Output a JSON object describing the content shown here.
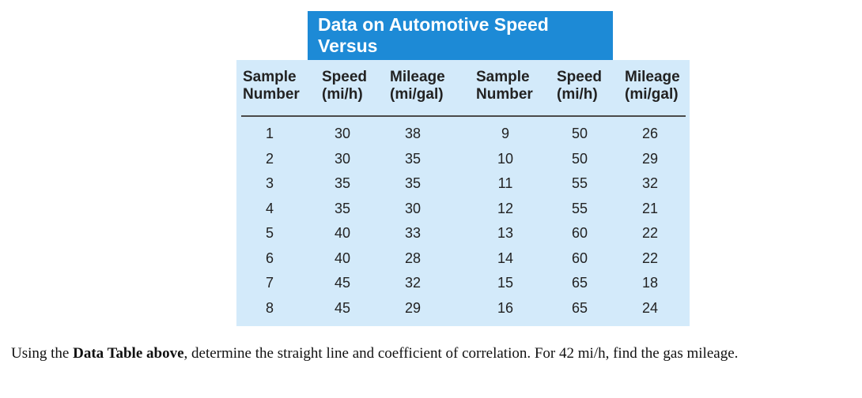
{
  "table": {
    "title": "Data on Automotive Speed Versus\nGas Mileage",
    "headers": [
      "Sample\nNumber",
      "Speed\n(mi/h)",
      "Mileage\n(mi/gal)",
      "Sample\nNumber",
      "Speed\n(mi/h)",
      "Mileage\n(mi/gal)"
    ],
    "rows": [
      [
        "1",
        "30",
        "38",
        "9",
        "50",
        "26"
      ],
      [
        "2",
        "30",
        "35",
        "10",
        "50",
        "29"
      ],
      [
        "3",
        "35",
        "35",
        "11",
        "55",
        "32"
      ],
      [
        "4",
        "35",
        "30",
        "12",
        "55",
        "21"
      ],
      [
        "5",
        "40",
        "33",
        "13",
        "60",
        "22"
      ],
      [
        "6",
        "40",
        "28",
        "14",
        "60",
        "22"
      ],
      [
        "7",
        "45",
        "32",
        "15",
        "65",
        "18"
      ],
      [
        "8",
        "45",
        "29",
        "16",
        "65",
        "24"
      ]
    ]
  },
  "question": {
    "prefix": "Using the ",
    "bold": "Data Table above",
    "suffix": ", determine the straight line and coefficient of correlation. For 42 mi/h, find the gas mileage."
  },
  "colors": {
    "banner": "#1d8ad6",
    "panel": "#d3eafa"
  }
}
